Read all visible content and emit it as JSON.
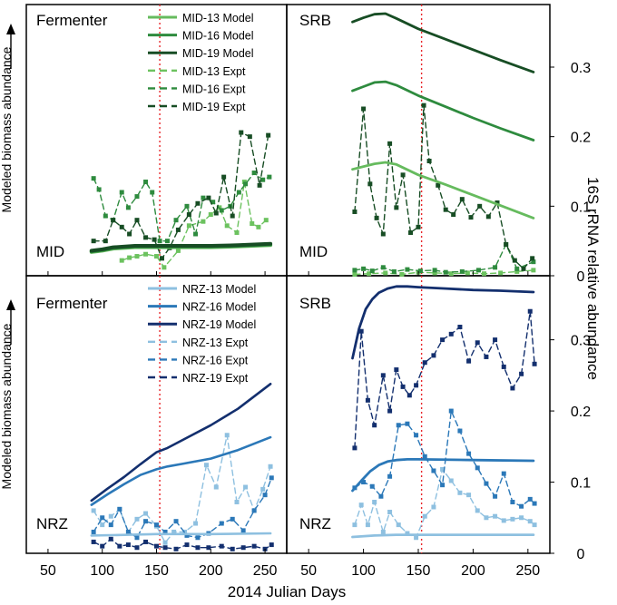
{
  "figure": {
    "xlabel": "2014 Julian Days",
    "ylabel_left": "Modeled biomass abundance",
    "ylabel_right": "16S rRNA relative abundance",
    "x_ticks": [
      "50",
      "100",
      "150",
      "200",
      "250"
    ],
    "y_ticks": [
      "0",
      "0.1",
      "0.2",
      "0.3"
    ],
    "vline_day": 153,
    "vline_color": "#e8262a"
  },
  "chart_data": [
    {
      "type": "line",
      "panel": "MID Fermenter",
      "title": "Fermenter",
      "site": "MID",
      "xlim": [
        30,
        270
      ],
      "ylim": [
        0,
        0.39
      ],
      "legend": "top-right",
      "series": [
        {
          "name": "MID-13 Model",
          "style": "solid",
          "color": "#66bb5e",
          "width": 4,
          "x": [
            90,
            100,
            110,
            130,
            150,
            175,
            200,
            225,
            255
          ],
          "y": [
            0.034,
            0.036,
            0.039,
            0.041,
            0.041,
            0.041,
            0.041,
            0.042,
            0.044
          ]
        },
        {
          "name": "MID-16 Model",
          "style": "solid",
          "color": "#2e8b3e",
          "width": 4,
          "x": [
            90,
            100,
            110,
            130,
            150,
            175,
            200,
            225,
            255
          ],
          "y": [
            0.035,
            0.037,
            0.04,
            0.042,
            0.042,
            0.042,
            0.042,
            0.043,
            0.045
          ]
        },
        {
          "name": "MID-19 Model",
          "style": "solid",
          "color": "#174d24",
          "width": 4,
          "x": [
            90,
            100,
            110,
            130,
            150,
            175,
            200,
            225,
            255
          ],
          "y": [
            0.036,
            0.038,
            0.041,
            0.043,
            0.043,
            0.043,
            0.043,
            0.044,
            0.046
          ]
        },
        {
          "name": "MID-13 Expt",
          "style": "dashed",
          "color": "#6cc25f",
          "width": 1.4,
          "markers": true,
          "x": [
            118,
            125,
            132,
            140,
            150,
            157,
            170,
            180,
            193,
            200,
            208,
            215,
            224,
            231,
            238,
            244,
            251
          ],
          "y": [
            0.022,
            0.026,
            0.028,
            0.031,
            0.028,
            0.012,
            0.036,
            0.072,
            0.078,
            0.088,
            0.098,
            0.072,
            0.062,
            0.135,
            0.075,
            0.07,
            0.08
          ]
        },
        {
          "name": "MID-16 Expt",
          "style": "dashed",
          "color": "#2e8b3e",
          "width": 1.4,
          "markers": true,
          "x": [
            92,
            97,
            103,
            110,
            118,
            124,
            132,
            140,
            146,
            153,
            160,
            168,
            178,
            186,
            193,
            202,
            210,
            218,
            226,
            232,
            240,
            248,
            254
          ],
          "y": [
            0.14,
            0.124,
            0.086,
            0.08,
            0.12,
            0.098,
            0.114,
            0.135,
            0.12,
            0.05,
            0.05,
            0.08,
            0.1,
            0.06,
            0.112,
            0.106,
            0.094,
            0.1,
            0.12,
            0.132,
            0.148,
            0.138,
            0.142
          ]
        },
        {
          "name": "MID-19 Expt",
          "style": "dashed",
          "color": "#174d24",
          "width": 1.4,
          "markers": true,
          "x": [
            92,
            103,
            110,
            118,
            125,
            132,
            140,
            148,
            155,
            162,
            170,
            180,
            188,
            198,
            205,
            212,
            220,
            228,
            236,
            245,
            253
          ],
          "y": [
            0.05,
            0.05,
            0.08,
            0.07,
            0.06,
            0.08,
            0.055,
            0.052,
            0.025,
            0.04,
            0.066,
            0.088,
            0.104,
            0.112,
            0.09,
            0.142,
            0.086,
            0.206,
            0.2,
            0.13,
            0.202
          ]
        }
      ]
    },
    {
      "type": "line",
      "panel": "MID SRB",
      "title": "SRB",
      "site": "MID",
      "xlim": [
        30,
        270
      ],
      "ylim": [
        0,
        0.39
      ],
      "series": [
        {
          "name": "MID-13 Model",
          "style": "solid",
          "color": "#66bb5e",
          "width": 2.8,
          "x": [
            90,
            100,
            110,
            120,
            130,
            150,
            175,
            200,
            225,
            255
          ],
          "y": [
            0.153,
            0.157,
            0.161,
            0.163,
            0.16,
            0.145,
            0.131,
            0.116,
            0.101,
            0.083
          ]
        },
        {
          "name": "MID-16 Model",
          "style": "solid",
          "color": "#2e8b3e",
          "width": 2.8,
          "x": [
            90,
            100,
            110,
            120,
            130,
            150,
            175,
            200,
            225,
            255
          ],
          "y": [
            0.266,
            0.272,
            0.278,
            0.279,
            0.274,
            0.259,
            0.243,
            0.227,
            0.212,
            0.195
          ]
        },
        {
          "name": "MID-19 Model",
          "style": "solid",
          "color": "#174d24",
          "width": 2.8,
          "x": [
            90,
            100,
            110,
            120,
            130,
            150,
            175,
            200,
            225,
            255
          ],
          "y": [
            0.365,
            0.371,
            0.376,
            0.377,
            0.37,
            0.355,
            0.34,
            0.325,
            0.31,
            0.293
          ]
        },
        {
          "name": "MID-13 Expt",
          "style": "dashed",
          "color": "#6cc25f",
          "width": 1.4,
          "markers": true,
          "x": [
            92,
            105,
            120,
            135,
            150,
            165,
            180,
            195,
            210,
            225,
            240,
            255
          ],
          "y": [
            0.002,
            0.003,
            0.004,
            0.002,
            0.005,
            0.004,
            0.003,
            0.004,
            0.003,
            0.004,
            0.006,
            0.008
          ]
        },
        {
          "name": "MID-16 Expt",
          "style": "dashed",
          "color": "#2e8b3e",
          "width": 1.4,
          "markers": true,
          "x": [
            92,
            100,
            108,
            118,
            128,
            140,
            152,
            165,
            175,
            190,
            205,
            220,
            230,
            240,
            255
          ],
          "y": [
            0.008,
            0.01,
            0.007,
            0.012,
            0.006,
            0.009,
            0.007,
            0.008,
            0.005,
            0.006,
            0.008,
            0.012,
            0.045,
            0.01,
            0.02
          ]
        },
        {
          "name": "MID-19 Expt",
          "style": "dashed",
          "color": "#174d24",
          "width": 1.4,
          "markers": true,
          "x": [
            92,
            100,
            106,
            112,
            118,
            124,
            130,
            136,
            143,
            150,
            155,
            160,
            168,
            175,
            182,
            190,
            198,
            206,
            214,
            222,
            230,
            238,
            246,
            254
          ],
          "y": [
            0.092,
            0.24,
            0.132,
            0.083,
            0.06,
            0.19,
            0.098,
            0.145,
            0.062,
            0.07,
            0.245,
            0.165,
            0.13,
            0.095,
            0.088,
            0.11,
            0.084,
            0.1,
            0.085,
            0.105,
            0.045,
            0.022,
            0.01,
            0.025
          ]
        }
      ]
    },
    {
      "type": "line",
      "panel": "NRZ Fermenter",
      "title": "Fermenter",
      "site": "NRZ",
      "xlim": [
        30,
        270
      ],
      "ylim": [
        0,
        0.39
      ],
      "legend": "top-right",
      "series": [
        {
          "name": "NRZ-13 Model",
          "style": "solid",
          "color": "#8ec0e0",
          "width": 2.6,
          "x": [
            90,
            125,
            150,
            200,
            255
          ],
          "y": [
            0.025,
            0.026,
            0.027,
            0.027,
            0.028
          ]
        },
        {
          "name": "NRZ-16 Model",
          "style": "solid",
          "color": "#2b78b8",
          "width": 2.6,
          "x": [
            90,
            105,
            120,
            135,
            150,
            160,
            175,
            200,
            225,
            255
          ],
          "y": [
            0.068,
            0.083,
            0.097,
            0.11,
            0.118,
            0.122,
            0.126,
            0.133,
            0.145,
            0.163
          ]
        },
        {
          "name": "NRZ-19 Model",
          "style": "solid",
          "color": "#132f6e",
          "width": 2.6,
          "x": [
            90,
            105,
            120,
            135,
            150,
            160,
            175,
            200,
            225,
            255
          ],
          "y": [
            0.074,
            0.091,
            0.107,
            0.125,
            0.142,
            0.148,
            0.16,
            0.18,
            0.203,
            0.238
          ]
        },
        {
          "name": "NRZ-13 Expt",
          "style": "dashed",
          "color": "#8ec0e0",
          "width": 1.4,
          "markers": true,
          "x": [
            92,
            100,
            108,
            116,
            124,
            132,
            140,
            150,
            158,
            166,
            176,
            186,
            196,
            205,
            215,
            224,
            232,
            240,
            248,
            255
          ],
          "y": [
            0.06,
            0.04,
            0.052,
            0.062,
            0.03,
            0.048,
            0.056,
            0.038,
            0.015,
            0.03,
            0.03,
            0.042,
            0.124,
            0.093,
            0.166,
            0.072,
            0.093,
            0.06,
            0.09,
            0.122
          ]
        },
        {
          "name": "NRZ-16 Expt",
          "style": "dashed",
          "color": "#2b78b8",
          "width": 1.4,
          "markers": true,
          "x": [
            92,
            100,
            108,
            116,
            124,
            132,
            140,
            150,
            158,
            168,
            178,
            188,
            198,
            210,
            220,
            230,
            240,
            250,
            256
          ],
          "y": [
            0.03,
            0.05,
            0.04,
            0.062,
            0.03,
            0.022,
            0.045,
            0.04,
            0.03,
            0.045,
            0.025,
            0.022,
            0.028,
            0.042,
            0.048,
            0.032,
            0.06,
            0.082,
            0.106
          ]
        },
        {
          "name": "NRZ-19 Expt",
          "style": "dashed",
          "color": "#132f6e",
          "width": 1.4,
          "markers": true,
          "x": [
            92,
            100,
            108,
            116,
            124,
            132,
            140,
            150,
            158,
            168,
            178,
            188,
            198,
            210,
            220,
            230,
            240,
            250,
            256
          ],
          "y": [
            0.016,
            0.01,
            0.02,
            0.01,
            0.012,
            0.008,
            0.016,
            0.01,
            0.008,
            0.006,
            0.012,
            0.008,
            0.008,
            0.01,
            0.006,
            0.008,
            0.01,
            0.006,
            0.012
          ]
        }
      ]
    },
    {
      "type": "line",
      "panel": "NRZ SRB",
      "title": "SRB",
      "site": "NRZ",
      "xlim": [
        30,
        270
      ],
      "ylim": [
        0,
        0.39
      ],
      "series": [
        {
          "name": "NRZ-13 Model",
          "style": "solid",
          "color": "#8ec0e0",
          "width": 2.8,
          "x": [
            90,
            110,
            130,
            150,
            200,
            255
          ],
          "y": [
            0.023,
            0.025,
            0.026,
            0.026,
            0.026,
            0.026
          ]
        },
        {
          "name": "NRZ-16 Model",
          "style": "solid",
          "color": "#2b78b8",
          "width": 2.8,
          "x": [
            90,
            98,
            106,
            114,
            122,
            130,
            140,
            150,
            200,
            255
          ],
          "y": [
            0.088,
            0.102,
            0.115,
            0.124,
            0.129,
            0.131,
            0.132,
            0.132,
            0.131,
            0.13
          ]
        },
        {
          "name": "NRZ-19 Model",
          "style": "solid",
          "color": "#132f6e",
          "width": 2.8,
          "x": [
            90,
            96,
            102,
            108,
            114,
            122,
            130,
            140,
            150,
            175,
            200,
            225,
            255
          ],
          "y": [
            0.274,
            0.316,
            0.343,
            0.357,
            0.366,
            0.372,
            0.375,
            0.375,
            0.374,
            0.372,
            0.37,
            0.369,
            0.367
          ]
        },
        {
          "name": "NRZ-13 Expt",
          "style": "dashed",
          "color": "#8ec0e0",
          "width": 1.4,
          "markers": true,
          "x": [
            92,
            98,
            104,
            110,
            118,
            124,
            132,
            140,
            148,
            156,
            164,
            172,
            180,
            188,
            196,
            204,
            212,
            220,
            228,
            236,
            244,
            252,
            256
          ],
          "y": [
            0.04,
            0.068,
            0.04,
            0.072,
            0.03,
            0.058,
            0.04,
            0.028,
            0.022,
            0.052,
            0.065,
            0.118,
            0.102,
            0.085,
            0.082,
            0.06,
            0.05,
            0.052,
            0.046,
            0.048,
            0.05,
            0.045,
            0.04
          ]
        },
        {
          "name": "NRZ-16 Expt",
          "style": "dashed",
          "color": "#2b78b8",
          "width": 1.4,
          "markers": true,
          "x": [
            92,
            100,
            108,
            116,
            124,
            132,
            140,
            148,
            156,
            164,
            172,
            180,
            188,
            196,
            204,
            212,
            220,
            228,
            236,
            244,
            252,
            256
          ],
          "y": [
            0.092,
            0.1,
            0.094,
            0.08,
            0.108,
            0.18,
            0.182,
            0.166,
            0.136,
            0.116,
            0.096,
            0.2,
            0.172,
            0.14,
            0.12,
            0.098,
            0.08,
            0.112,
            0.072,
            0.066,
            0.076,
            0.07
          ]
        },
        {
          "name": "NRZ-19 Expt",
          "style": "dashed",
          "color": "#132f6e",
          "width": 1.4,
          "markers": true,
          "x": [
            92,
            98,
            104,
            110,
            118,
            124,
            130,
            136,
            142,
            148,
            156,
            164,
            172,
            180,
            188,
            196,
            204,
            212,
            220,
            228,
            236,
            244,
            252,
            256
          ],
          "y": [
            0.148,
            0.312,
            0.215,
            0.18,
            0.25,
            0.2,
            0.258,
            0.234,
            0.222,
            0.236,
            0.268,
            0.278,
            0.3,
            0.308,
            0.318,
            0.27,
            0.296,
            0.276,
            0.3,
            0.262,
            0.232,
            0.252,
            0.34,
            0.266
          ]
        }
      ]
    }
  ]
}
